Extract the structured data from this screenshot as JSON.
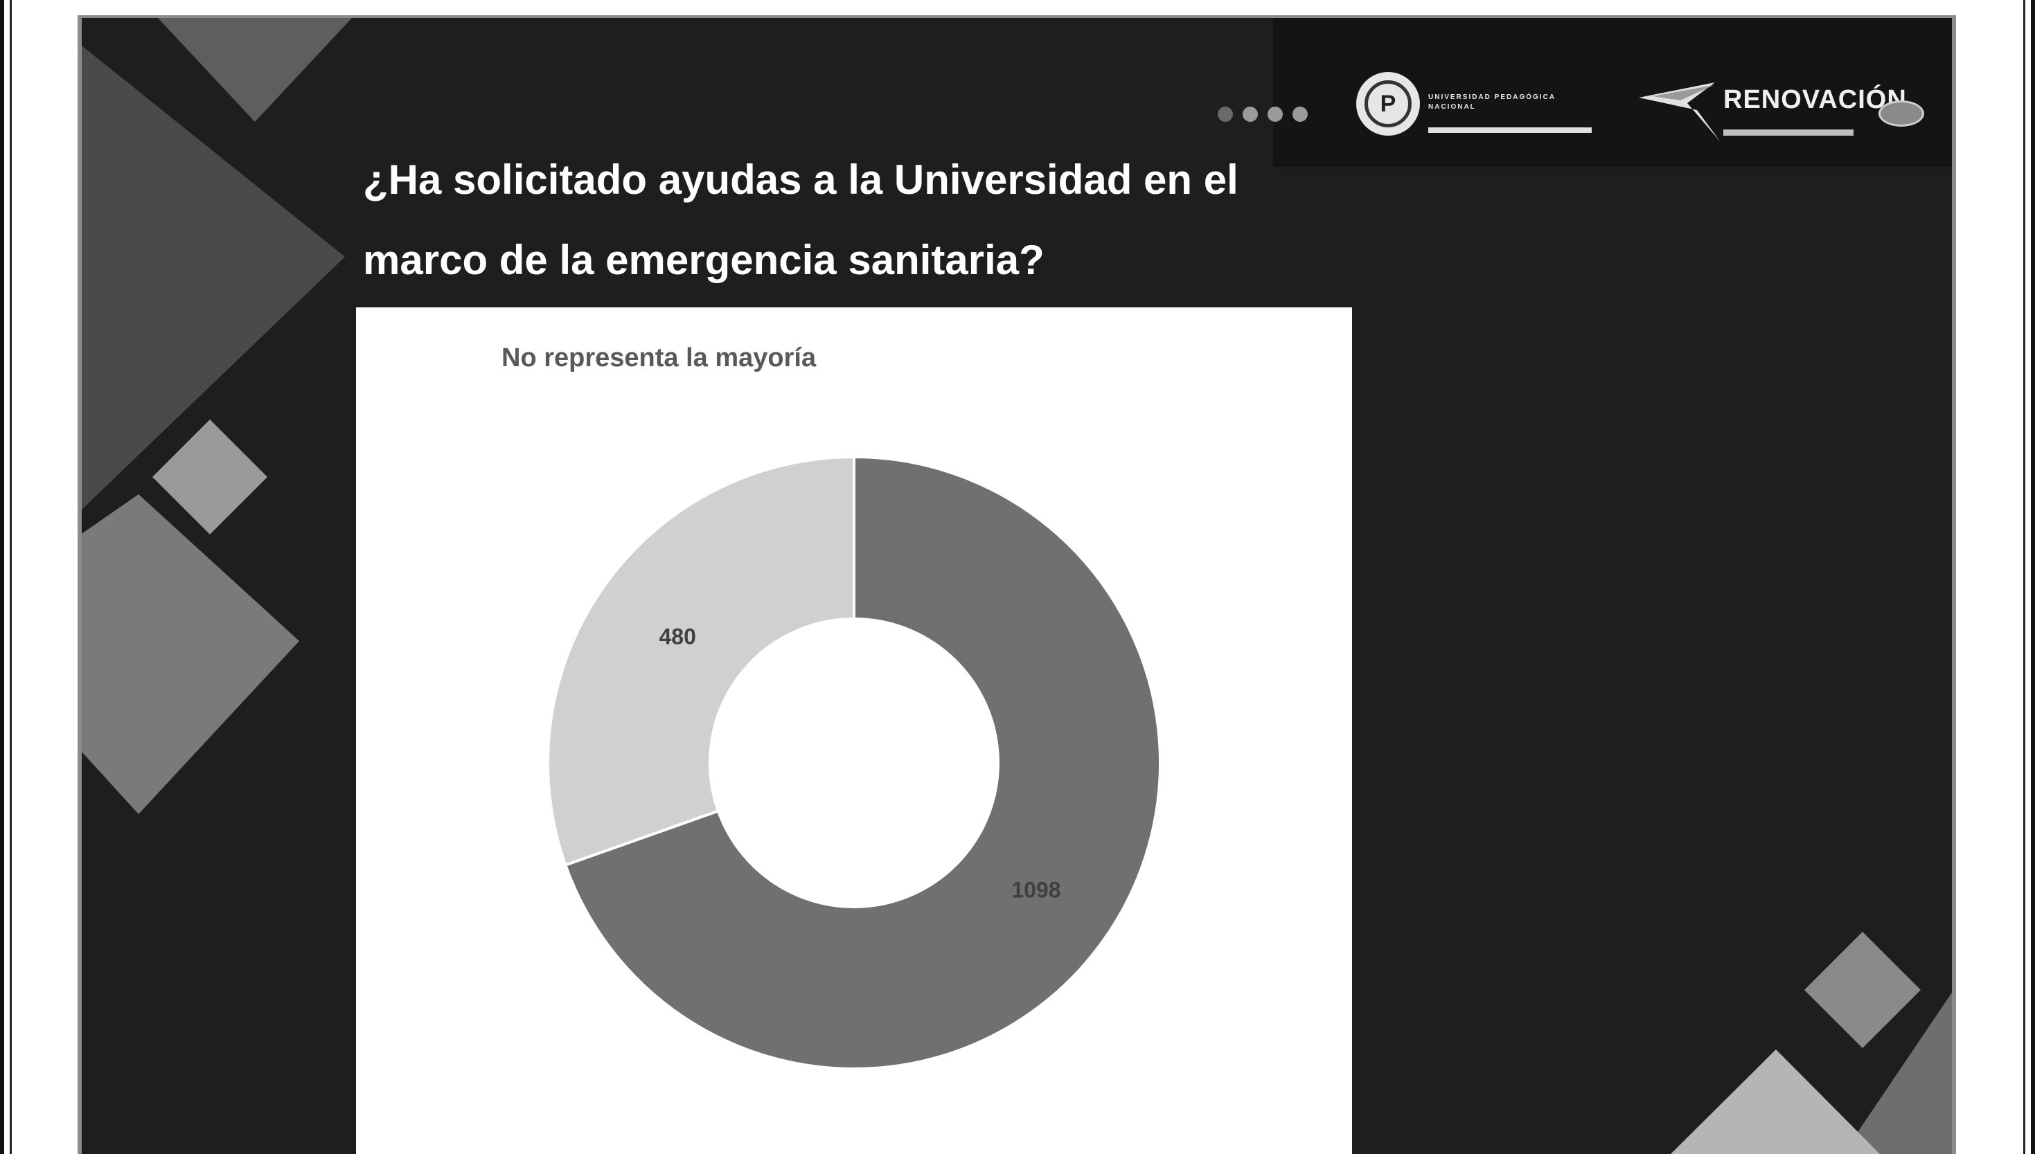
{
  "slide": {
    "title_line1": "¿Ha solicitado ayudas a la Universidad en el",
    "title_line2": "marco de la emergencia sanitaria?"
  },
  "logos": {
    "upn_text": "UNIVERSIDAD PEDAGÓGICA NACIONAL",
    "renovacion_text": "RENOVACIÓN",
    "colors": {
      "band": "#141414",
      "logo_light": "#e6e6e6"
    }
  },
  "chart_data": {
    "type": "pie",
    "donut": true,
    "title": "No representa la mayoría",
    "values": [
      1098,
      480
    ],
    "data_labels": [
      "1098",
      "480"
    ],
    "colors": [
      "#707070",
      "#d0d0d0"
    ],
    "start_angle_deg": 0,
    "direction": "clockwise"
  }
}
